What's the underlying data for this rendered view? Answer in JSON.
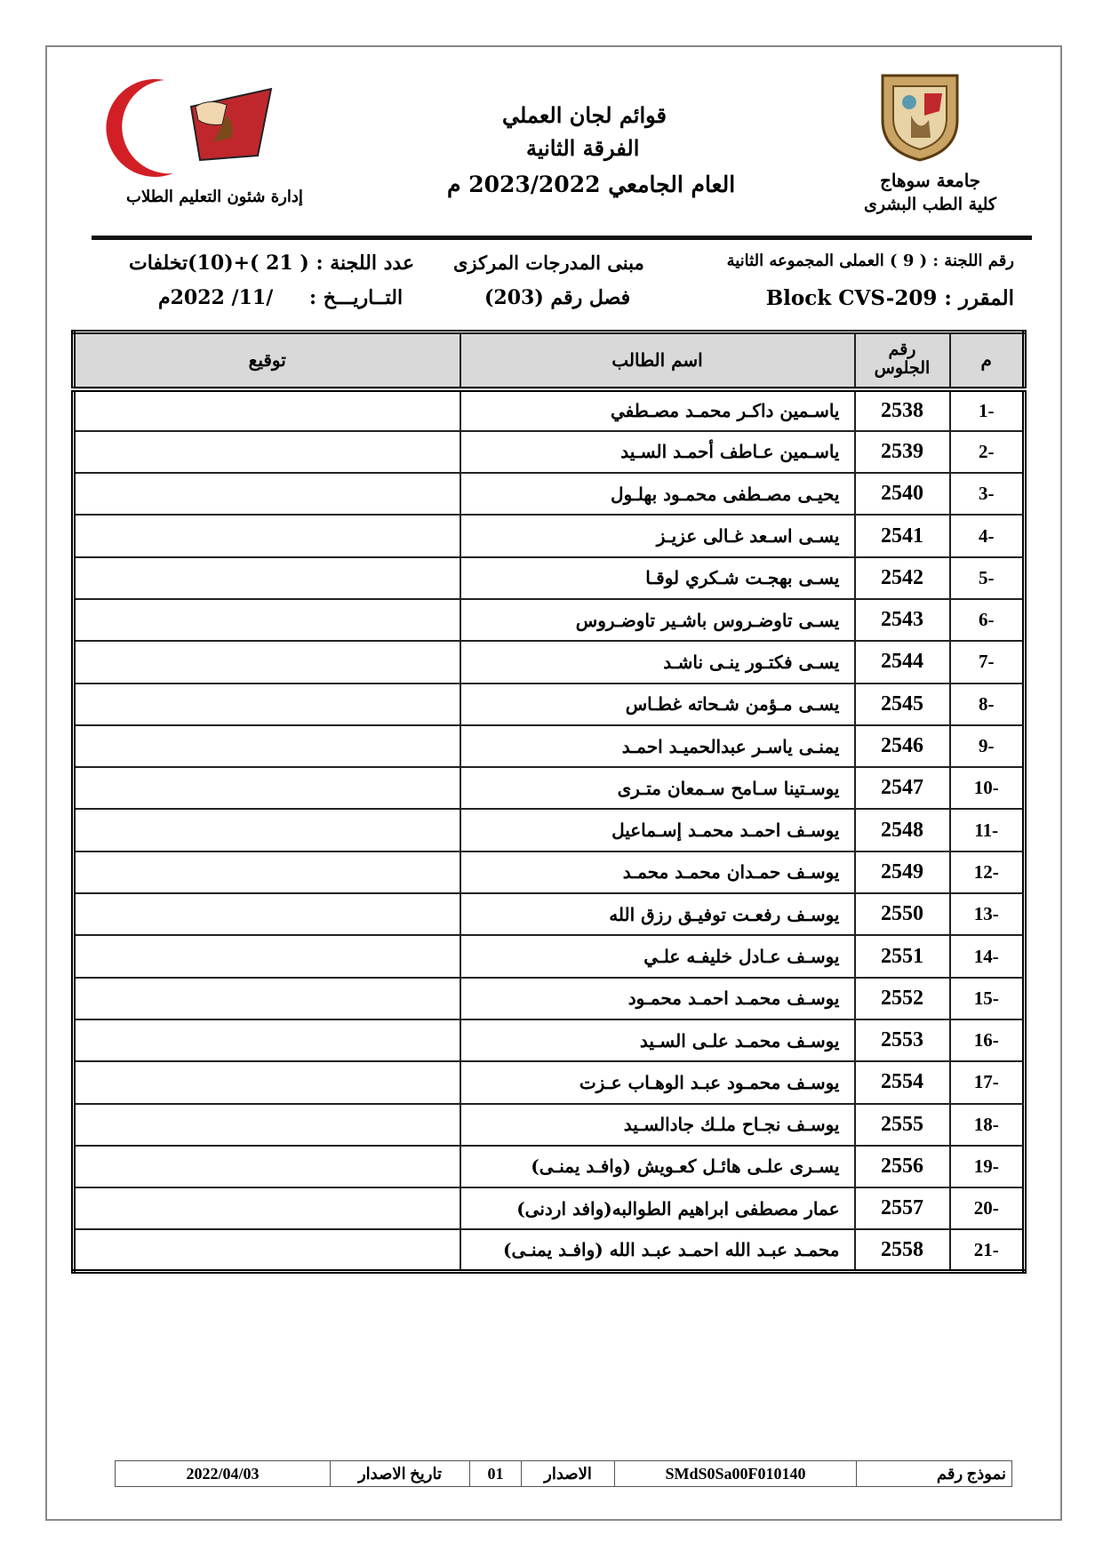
{
  "header": {
    "university": "جامعة سوهاج",
    "faculty": "كلية الطب البشرى",
    "title1": "قوائم لجان العملي",
    "title2": "الفرقة الثانية",
    "title3": "العام الجامعي 2023/2022 م",
    "department": "إدارة شئون التعليم الطلاب",
    "right_logo_text": "جامعة سوهاج",
    "left_logo_text": "جامعة سوهاج كلية الطب"
  },
  "info": {
    "committee_no": "رقم اللجنة : ( 9 ) العملى المجموعه الثانية",
    "course": "المقرر : Block CVS-209",
    "building": "مبنى المدرجات المركزى",
    "room": "فصل رقم (203)",
    "count": "عدد اللجنة : ( 21 )+(10)تخلفات",
    "date_label": "التــاريـــخ :",
    "date_value": "/11/ 2022م"
  },
  "table": {
    "headers": {
      "no": "م",
      "seat": "رقم الجلوس",
      "name": "اسم الطالب",
      "signature": "توقيع"
    },
    "rows": [
      {
        "no": "-1",
        "seat": "2538",
        "name": "ياسـمين داكـر محمـد مصـطفي"
      },
      {
        "no": "-2",
        "seat": "2539",
        "name": "ياسـمين عـاطف أحمـد السـيد"
      },
      {
        "no": "-3",
        "seat": "2540",
        "name": "يحيـى مصـطفى محمـود بهلـول"
      },
      {
        "no": "-4",
        "seat": "2541",
        "name": "يسـى اسـعد غـالى عزيـز"
      },
      {
        "no": "-5",
        "seat": "2542",
        "name": "يسـى بهجـت شـكري لوقـا"
      },
      {
        "no": "-6",
        "seat": "2543",
        "name": "يسـى تاوضـروس باشـير تاوضـروس"
      },
      {
        "no": "-7",
        "seat": "2544",
        "name": "يسـى فكتـور ينـى ناشـد"
      },
      {
        "no": "-8",
        "seat": "2545",
        "name": "يسـى مـؤمن شـحاته غطـاس"
      },
      {
        "no": "-9",
        "seat": "2546",
        "name": "يمنـى ياسـر عبدالحميـد احمـد"
      },
      {
        "no": "-10",
        "seat": "2547",
        "name": "يوسـتينا سـامح سـمعان متـرى"
      },
      {
        "no": "-11",
        "seat": "2548",
        "name": "يوسـف احمـد محمـد إسـماعيل"
      },
      {
        "no": "-12",
        "seat": "2549",
        "name": "يوسـف حمـدان محمـد محمـد"
      },
      {
        "no": "-13",
        "seat": "2550",
        "name": "يوسـف رفعـت توفيـق رزق الله"
      },
      {
        "no": "-14",
        "seat": "2551",
        "name": "يوسـف عـادل خليفـه علـي"
      },
      {
        "no": "-15",
        "seat": "2552",
        "name": "يوسـف محمـد احمـد محمـود"
      },
      {
        "no": "-16",
        "seat": "2553",
        "name": "يوسـف محمـد علـى السـيد"
      },
      {
        "no": "-17",
        "seat": "2554",
        "name": "يوسـف محمـود عبـد الوهـاب عـزت"
      },
      {
        "no": "-18",
        "seat": "2555",
        "name": "يوسـف نجـاح ملـك جادالسـيد"
      },
      {
        "no": "-19",
        "seat": "2556",
        "name": "يسـرى علـى هائـل كعـويش (وافـد يمنـى)"
      },
      {
        "no": "-20",
        "seat": "2557",
        "name": "عمار مصطفى ابراهيم الطوالبه(وافد اردنى)"
      },
      {
        "no": "-21",
        "seat": "2558",
        "name": "محمـد عبـد الله احمـد عبـد الله (وافـد يمنـى)"
      }
    ]
  },
  "footer": {
    "form_label": "نموذج رقم",
    "form_value": "SMdS0Sa00F010140",
    "issue_label": "الاصدار",
    "issue_value": "01",
    "issue_date_label": "تاريخ الاصدار",
    "issue_date_value": "2022/04/03"
  }
}
